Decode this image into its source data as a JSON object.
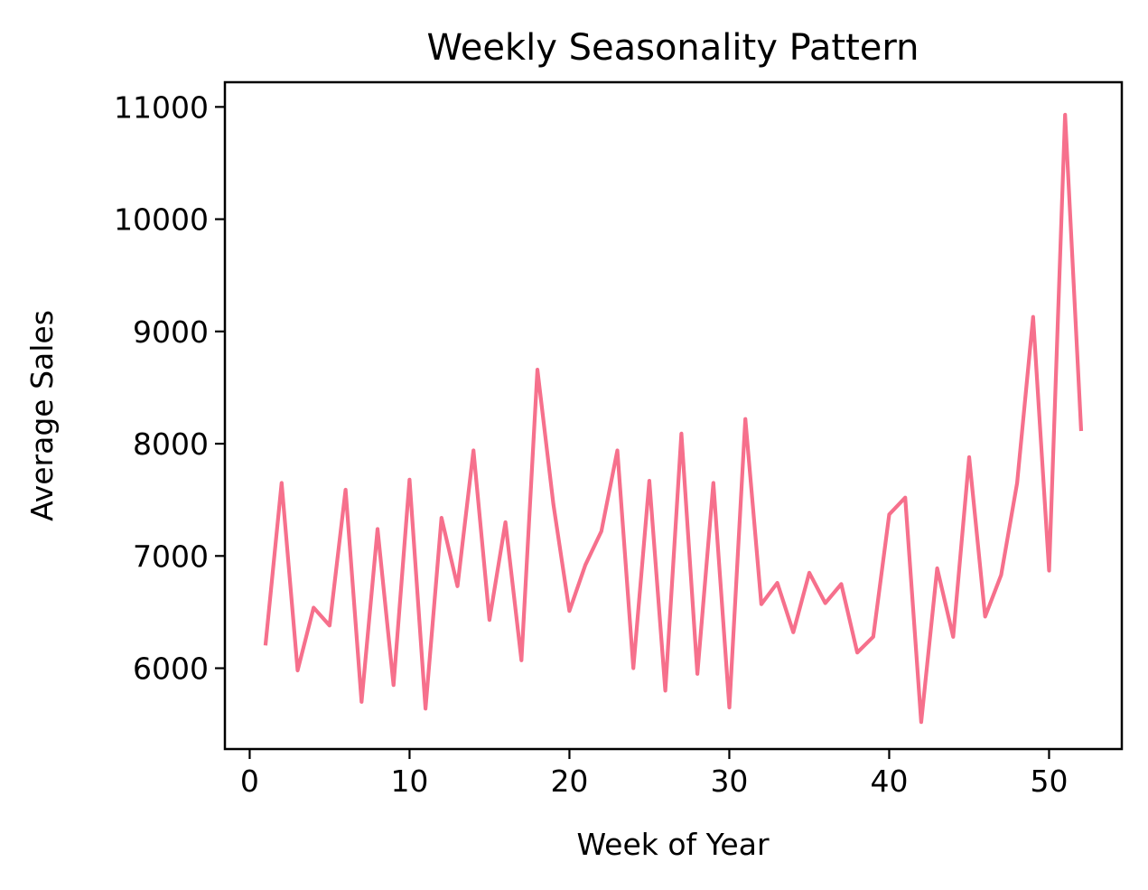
{
  "chart_data": {
    "type": "line",
    "title": "Weekly Seasonality Pattern",
    "xlabel": "Week of Year",
    "ylabel": "Average Sales",
    "xlim": [
      -1.55,
      54.55
    ],
    "ylim": [
      5280,
      11220
    ],
    "xticks": [
      0,
      10,
      20,
      30,
      40,
      50
    ],
    "yticks": [
      6000,
      7000,
      8000,
      9000,
      10000,
      11000
    ],
    "grid": false,
    "line_color": "#f6708c",
    "series": [
      {
        "x": [
          1,
          2,
          3,
          4,
          5,
          6,
          7,
          8,
          9,
          10,
          11,
          12,
          13,
          14,
          15,
          16,
          17,
          18,
          19,
          20,
          21,
          22,
          23,
          24,
          25,
          26,
          27,
          28,
          29,
          30,
          31,
          32,
          33,
          34,
          35,
          36,
          37,
          38,
          39,
          40,
          41,
          42,
          43,
          44,
          45,
          46,
          47,
          48,
          49,
          50,
          51,
          52
        ],
        "values": [
          6220,
          7650,
          5980,
          6540,
          6380,
          7590,
          5700,
          7240,
          5850,
          7680,
          5640,
          7340,
          6730,
          7940,
          6430,
          7300,
          6070,
          8660,
          7460,
          6510,
          6920,
          7220,
          7940,
          6000,
          7670,
          5800,
          8090,
          5950,
          7650,
          5650,
          8220,
          6570,
          6760,
          6320,
          6850,
          6580,
          6750,
          6140,
          6280,
          7370,
          7520,
          5520,
          6890,
          6280,
          7880,
          6460,
          6830,
          7650,
          9130,
          6870,
          10930,
          8130
        ]
      }
    ]
  }
}
